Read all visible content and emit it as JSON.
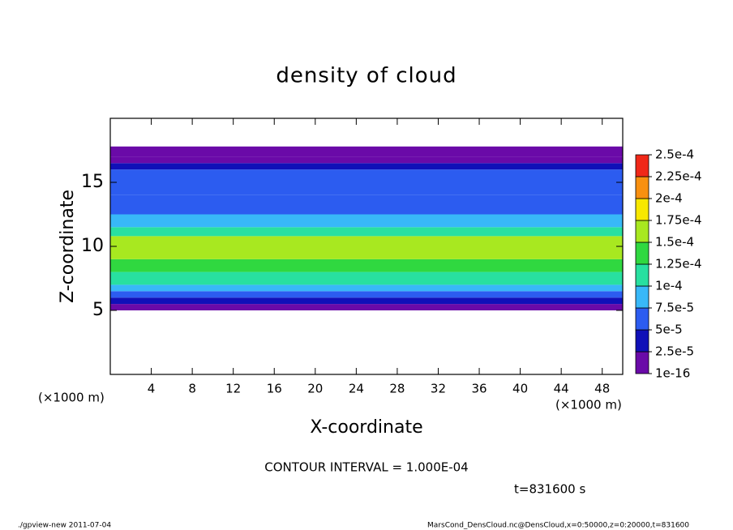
{
  "chart_data": {
    "type": "contour",
    "title": "density of cloud",
    "x_label": "X-coordinate",
    "y_label": "Z-coordinate",
    "x_unit": "(×1000 m)",
    "y_unit": "(×1000 m)",
    "xlim": [
      0,
      50
    ],
    "ylim": [
      0,
      20
    ],
    "xticks": [
      4,
      8,
      12,
      16,
      20,
      24,
      28,
      32,
      36,
      40,
      44,
      48
    ],
    "yticks": [
      5,
      10,
      15
    ],
    "ybins": [
      5,
      5.5,
      6,
      6.5,
      7,
      8,
      9,
      10,
      10.8,
      11.5,
      12.5,
      14,
      16,
      16.5,
      17,
      17.8
    ],
    "values": [
      1e-05,
      3e-05,
      6e-05,
      8e-05,
      0.000105,
      0.00013,
      0.00016,
      0.00015,
      0.00011,
      8e-05,
      6e-05,
      5e-05,
      3e-05,
      2e-05,
      1e-06
    ],
    "levels": [
      {
        "value": 1e-16,
        "label": "1e-16"
      },
      {
        "value": 2.5e-05,
        "label": "2.5e-5"
      },
      {
        "value": 5e-05,
        "label": "5e-5"
      },
      {
        "value": 7.5e-05,
        "label": "7.5e-5"
      },
      {
        "value": 0.0001,
        "label": "1e-4"
      },
      {
        "value": 0.000125,
        "label": "1.25e-4"
      },
      {
        "value": 0.00015,
        "label": "1.5e-4"
      },
      {
        "value": 0.000175,
        "label": "1.75e-4"
      },
      {
        "value": 0.0002,
        "label": "2e-4"
      },
      {
        "value": 0.000225,
        "label": "2.25e-4"
      },
      {
        "value": 0.00025,
        "label": "2.5e-4"
      }
    ],
    "colors": [
      "#6a0aa8",
      "#1010b8",
      "#2c5cf0",
      "#38b8f8",
      "#28e0a0",
      "#30d840",
      "#a8e820",
      "#f8e800",
      "#f89010",
      "#f02818"
    ],
    "contour_interval": "CONTOUR INTERVAL = 1.000E-04",
    "time_label": "t=831600 s",
    "footer_left": "./gpview-new  2011-07-04",
    "footer_right": "MarsCond_DensCloud.nc@DensCloud,x=0:50000,z=0:20000,t=831600"
  }
}
